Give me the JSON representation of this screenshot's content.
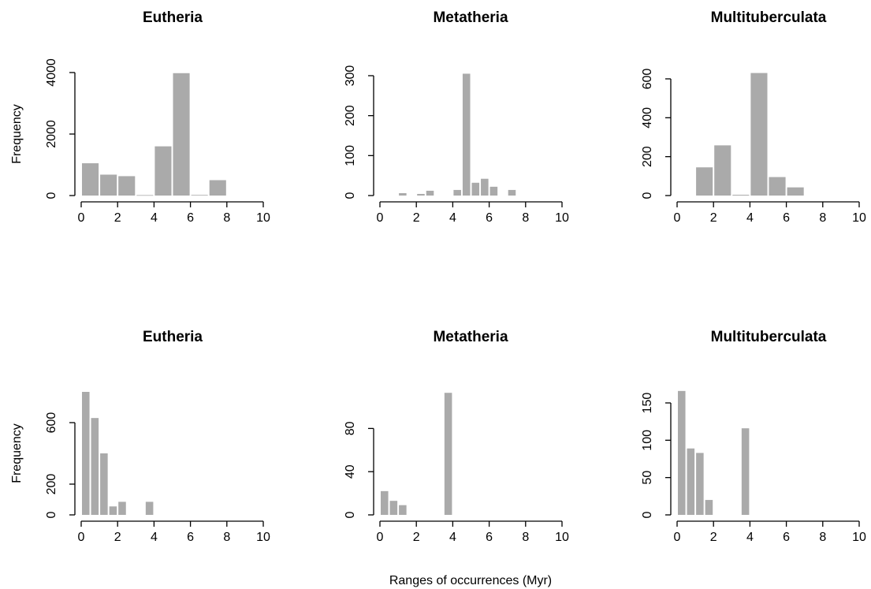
{
  "figure": {
    "xlabel": "Ranges of occurrences (Myr)",
    "ylabel": "Frequency"
  },
  "style": {
    "bar_color": "#aaaaaa",
    "axis_color": "#000000",
    "text_color": "#000000"
  },
  "chart_data": [
    {
      "type": "bar",
      "title": "Eutheria",
      "bin_width": 1,
      "bin_starts": [
        0,
        1,
        2,
        3,
        4,
        5,
        6,
        7
      ],
      "values": [
        1050,
        680,
        630,
        15,
        1600,
        3980,
        20,
        500
      ],
      "xlim": [
        0,
        10
      ],
      "ylim": [
        0,
        4000
      ],
      "xticks": [
        0,
        2,
        4,
        6,
        8,
        10
      ],
      "yticks": [
        0,
        2000,
        4000
      ],
      "show_ylabel": true
    },
    {
      "type": "bar",
      "title": "Metatheria",
      "bin_width": 0.5,
      "bin_starts": [
        1,
        1.5,
        2,
        2.5,
        3,
        3.5,
        4,
        4.5,
        5,
        5.5,
        6,
        6.5,
        7
      ],
      "values": [
        6,
        0,
        4,
        12,
        0,
        0,
        14,
        305,
        32,
        42,
        22,
        0,
        14
      ],
      "xlim": [
        0,
        10
      ],
      "ylim": [
        0,
        300
      ],
      "xticks": [
        0,
        2,
        4,
        6,
        8,
        10
      ],
      "yticks": [
        0,
        100,
        200,
        300
      ],
      "show_ylabel": false
    },
    {
      "type": "bar",
      "title": "Multituberculata",
      "bin_width": 1,
      "bin_starts": [
        1,
        2,
        3,
        4,
        5,
        6
      ],
      "values": [
        145,
        258,
        4,
        630,
        95,
        42
      ],
      "xlim": [
        0,
        10
      ],
      "ylim": [
        0,
        600
      ],
      "xticks": [
        0,
        2,
        4,
        6,
        8,
        10
      ],
      "yticks": [
        0,
        200,
        400,
        600
      ],
      "show_ylabel": false
    },
    {
      "type": "bar",
      "title": "Eutheria",
      "bin_width": 0.5,
      "bin_starts": [
        0,
        0.5,
        1,
        1.5,
        2,
        2.5,
        3,
        3.5
      ],
      "values": [
        800,
        630,
        400,
        55,
        85,
        0,
        0,
        85
      ],
      "xlim": [
        0,
        10
      ],
      "ylim": [
        0,
        800
      ],
      "xticks": [
        0,
        2,
        4,
        6,
        8,
        10
      ],
      "yticks": [
        0,
        200,
        600
      ],
      "show_ylabel": true
    },
    {
      "type": "bar",
      "title": "Metatheria",
      "bin_width": 0.5,
      "bin_starts": [
        0,
        0.5,
        1,
        1.5,
        2,
        2.5,
        3,
        3.5
      ],
      "values": [
        22,
        13,
        9,
        0,
        0,
        0,
        0,
        113
      ],
      "xlim": [
        0,
        10
      ],
      "ylim": [
        0,
        100
      ],
      "xticks": [
        0,
        2,
        4,
        6,
        8,
        10
      ],
      "yticks": [
        0,
        40,
        80
      ],
      "show_ylabel": false
    },
    {
      "type": "bar",
      "title": "Multituberculata",
      "bin_width": 0.5,
      "bin_starts": [
        0,
        0.5,
        1,
        1.5,
        2,
        2.5,
        3,
        3.5
      ],
      "values": [
        166,
        89,
        83,
        20,
        0,
        0,
        0,
        116
      ],
      "xlim": [
        0,
        10
      ],
      "ylim": [
        0,
        150
      ],
      "xticks": [
        0,
        2,
        4,
        6,
        8,
        10
      ],
      "yticks": [
        0,
        50,
        100,
        150
      ],
      "show_ylabel": false
    }
  ]
}
